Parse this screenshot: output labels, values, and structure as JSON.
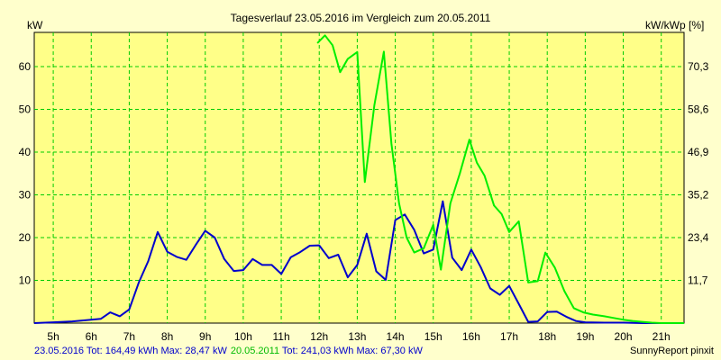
{
  "chart_data": {
    "type": "line",
    "title": "Tagesverlauf 23.05.2016 im Vergleich zum 20.05.2011",
    "ylabel_left": "kW",
    "ylabel_right": "kW/kWp [%]",
    "x_ticks": [
      "5h",
      "6h",
      "7h",
      "8h",
      "9h",
      "10h",
      "11h",
      "12h",
      "13h",
      "14h",
      "15h",
      "16h",
      "17h",
      "18h",
      "19h",
      "20h",
      "21h"
    ],
    "y_ticks_left": [
      "10",
      "20",
      "30",
      "40",
      "50",
      "60"
    ],
    "y_ticks_right": [
      "11,7",
      "23,4",
      "35,2",
      "46,9",
      "58,6",
      "70,3"
    ],
    "xlim": [
      4.5,
      21.6
    ],
    "ylim": [
      0,
      68
    ],
    "grid": true,
    "colors": {
      "background": "#ffffcc",
      "plot_background": "#ffff88",
      "grid": "#00cc00",
      "series_1": "#0000cc",
      "series_2": "#00ee00"
    },
    "series": [
      {
        "name": "23.05.2016",
        "color": "#0000cc",
        "x": [
          4.5,
          5.0,
          5.5,
          6.0,
          6.25,
          6.5,
          6.75,
          7.0,
          7.25,
          7.5,
          7.75,
          8.0,
          8.25,
          8.5,
          8.75,
          9.0,
          9.25,
          9.5,
          9.75,
          10.0,
          10.25,
          10.5,
          10.75,
          11.0,
          11.25,
          11.5,
          11.75,
          12.0,
          12.25,
          12.5,
          12.75,
          13.0,
          13.25,
          13.5,
          13.75,
          14.0,
          14.25,
          14.5,
          14.75,
          15.0,
          15.25,
          15.5,
          15.75,
          16.0,
          16.25,
          16.5,
          16.75,
          17.0,
          17.25,
          17.5,
          17.75,
          18.0,
          18.25,
          18.5,
          18.75,
          19.0,
          19.5,
          20.0,
          20.5,
          21.0,
          21.6
        ],
        "y": [
          0,
          0.2,
          0.4,
          0.8,
          1.0,
          2.5,
          1.6,
          3.2,
          9.5,
          14.5,
          21.3,
          16.7,
          15.5,
          14.8,
          18.3,
          21.6,
          20.0,
          15.0,
          12.2,
          12.4,
          15.0,
          13.6,
          13.6,
          11.5,
          15.4,
          16.6,
          18.1,
          18.2,
          15.2,
          16.0,
          10.7,
          13.6,
          20.9,
          12.1,
          10.1,
          24.1,
          25.4,
          21.8,
          16.3,
          17.2,
          28.5,
          15.3,
          12.4,
          17.2,
          13.1,
          8.1,
          6.6,
          8.7,
          4.5,
          0.3,
          0.4,
          2.6,
          2.7,
          1.5,
          0.5,
          0.2,
          0.1,
          0.1,
          0,
          0,
          0
        ]
      },
      {
        "name": "20.05.2011",
        "color": "#00ee00",
        "x": [
          11.95,
          12.15,
          12.35,
          12.55,
          12.75,
          13.0,
          13.2,
          13.45,
          13.7,
          13.9,
          14.1,
          14.3,
          14.5,
          14.75,
          15.0,
          15.2,
          15.45,
          15.7,
          15.95,
          16.15,
          16.35,
          16.6,
          16.8,
          17.0,
          17.25,
          17.5,
          17.75,
          17.95,
          18.2,
          18.45,
          18.7,
          18.95,
          19.2,
          19.5,
          19.75,
          20.0,
          20.25,
          20.5,
          20.75,
          21.0,
          21.3,
          21.6
        ],
        "y": [
          65.5,
          67.3,
          65.0,
          58.7,
          61.8,
          63.4,
          33.0,
          51.0,
          63.5,
          42.0,
          28.0,
          20.0,
          16.5,
          17.5,
          23.0,
          12.5,
          28.0,
          35.0,
          42.9,
          37.5,
          34.5,
          27.5,
          25.5,
          21.3,
          23.8,
          9.5,
          9.8,
          16.5,
          13.0,
          7.5,
          3.5,
          2.5,
          2.0,
          1.6,
          1.2,
          0.8,
          0.5,
          0.3,
          0.1,
          0,
          0,
          0
        ]
      }
    ]
  },
  "footer": {
    "s1_date": "23.05.2016",
    "s1_stats": " Tot: 164,49 kWh Max: 28,47 kW",
    "s2_date": "20.05.2011",
    "s2_stats": " Tot: 241,03 kWh Max: 67,30 kW",
    "brand": "SunnyReport pinxit"
  }
}
